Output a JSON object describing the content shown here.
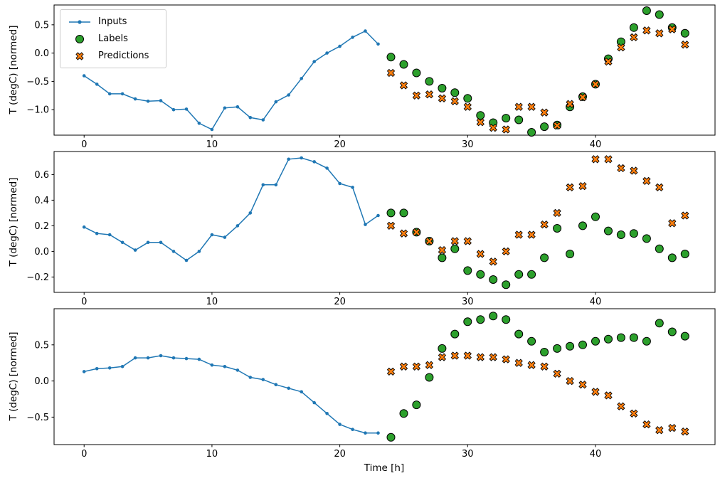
{
  "figure": {
    "background": "#ffffff",
    "xlabel": "Time [h]",
    "ylabel": "T (degC) [normed]"
  },
  "legend": {
    "position": "upper left",
    "items": [
      {
        "label": "Inputs",
        "marker": "line-dot",
        "color": "#1f77b4",
        "edge": "#000000"
      },
      {
        "label": "Labels",
        "marker": "circle",
        "color": "#2ca02c",
        "edge": "#000000"
      },
      {
        "label": "Predictions",
        "marker": "x",
        "color": "#ff7f0e",
        "edge": "#000000"
      }
    ]
  },
  "chart_data": [
    {
      "type": "line",
      "title": "",
      "xlabel": "",
      "ylabel": "T (degC) [normed]",
      "xlim": [
        -2.35,
        49.35
      ],
      "ylim": [
        -1.45,
        0.85
      ],
      "xticks": [
        0,
        10,
        20,
        30,
        40
      ],
      "yticks": [
        0.5,
        0.0,
        -0.5,
        -1.0
      ],
      "grid": false,
      "series": [
        {
          "name": "Inputs",
          "type": "line",
          "marker": "dot",
          "color": "#1f77b4",
          "x": [
            0,
            1,
            2,
            3,
            4,
            5,
            6,
            7,
            8,
            9,
            10,
            11,
            12,
            13,
            14,
            15,
            16,
            17,
            18,
            19,
            20,
            21,
            22,
            23
          ],
          "y": [
            -0.4,
            -0.55,
            -0.72,
            -0.72,
            -0.81,
            -0.85,
            -0.84,
            -1.0,
            -0.99,
            -1.24,
            -1.35,
            -0.97,
            -0.95,
            -1.14,
            -1.18,
            -0.86,
            -0.74,
            -0.45,
            -0.15,
            0.0,
            0.12,
            0.28,
            0.39,
            0.16
          ]
        },
        {
          "name": "Labels",
          "type": "scatter",
          "marker": "circle",
          "color": "#2ca02c",
          "edge": "#000000",
          "x": [
            24,
            25,
            26,
            27,
            28,
            29,
            30,
            31,
            32,
            33,
            34,
            35,
            36,
            37,
            38,
            39,
            40,
            41,
            42,
            43,
            44,
            45,
            46,
            47
          ],
          "y": [
            -0.07,
            -0.2,
            -0.35,
            -0.5,
            -0.62,
            -0.7,
            -0.8,
            -1.1,
            -1.23,
            -1.15,
            -1.18,
            -1.4,
            -1.3,
            -1.27,
            -0.95,
            -0.77,
            -0.55,
            -0.1,
            0.2,
            0.45,
            0.75,
            0.68,
            0.45,
            0.35
          ]
        },
        {
          "name": "Predictions",
          "type": "scatter",
          "marker": "x",
          "color": "#ff7f0e",
          "edge": "#000000",
          "x": [
            24,
            25,
            26,
            27,
            28,
            29,
            30,
            31,
            32,
            33,
            34,
            35,
            36,
            37,
            38,
            39,
            40,
            41,
            42,
            43,
            44,
            45,
            46,
            47
          ],
          "y": [
            -0.35,
            -0.57,
            -0.75,
            -0.73,
            -0.8,
            -0.85,
            -0.95,
            -1.22,
            -1.32,
            -1.35,
            -0.95,
            -0.95,
            -1.05,
            -1.28,
            -0.9,
            -0.78,
            -0.55,
            -0.15,
            0.1,
            0.28,
            0.4,
            0.35,
            0.42,
            0.15
          ]
        }
      ]
    },
    {
      "type": "line",
      "title": "",
      "xlabel": "",
      "ylabel": "T (degC) [normed]",
      "xlim": [
        -2.35,
        49.35
      ],
      "ylim": [
        -0.32,
        0.78
      ],
      "xticks": [
        0,
        10,
        20,
        30,
        40
      ],
      "yticks": [
        0.6,
        0.4,
        0.2,
        0.0,
        -0.2
      ],
      "grid": false,
      "series": [
        {
          "name": "Inputs",
          "type": "line",
          "marker": "dot",
          "color": "#1f77b4",
          "x": [
            0,
            1,
            2,
            3,
            4,
            5,
            6,
            7,
            8,
            9,
            10,
            11,
            12,
            13,
            14,
            15,
            16,
            17,
            18,
            19,
            20,
            21,
            22,
            23
          ],
          "y": [
            0.19,
            0.14,
            0.13,
            0.07,
            0.01,
            0.07,
            0.07,
            0.0,
            -0.07,
            0.0,
            0.13,
            0.11,
            0.2,
            0.3,
            0.52,
            0.52,
            0.72,
            0.73,
            0.7,
            0.65,
            0.53,
            0.5,
            0.21,
            0.28
          ]
        },
        {
          "name": "Labels",
          "type": "scatter",
          "marker": "circle",
          "color": "#2ca02c",
          "edge": "#000000",
          "x": [
            24,
            25,
            26,
            27,
            28,
            29,
            30,
            31,
            32,
            33,
            34,
            35,
            36,
            37,
            38,
            39,
            40,
            41,
            42,
            43,
            44,
            45,
            46,
            47
          ],
          "y": [
            0.3,
            0.3,
            0.15,
            0.08,
            -0.05,
            0.02,
            -0.15,
            -0.18,
            -0.22,
            -0.26,
            -0.18,
            -0.18,
            -0.05,
            0.18,
            -0.02,
            0.2,
            0.27,
            0.16,
            0.13,
            0.14,
            0.1,
            0.02,
            -0.05,
            -0.02
          ]
        },
        {
          "name": "Predictions",
          "type": "scatter",
          "marker": "x",
          "color": "#ff7f0e",
          "edge": "#000000",
          "x": [
            24,
            25,
            26,
            27,
            28,
            29,
            30,
            31,
            32,
            33,
            34,
            35,
            36,
            37,
            38,
            39,
            40,
            41,
            42,
            43,
            44,
            45,
            46,
            47
          ],
          "y": [
            0.2,
            0.14,
            0.15,
            0.08,
            0.01,
            0.08,
            0.08,
            -0.02,
            -0.08,
            0.0,
            0.13,
            0.13,
            0.21,
            0.3,
            0.5,
            0.51,
            0.72,
            0.72,
            0.65,
            0.63,
            0.55,
            0.5,
            0.22,
            0.28
          ]
        }
      ]
    },
    {
      "type": "line",
      "title": "",
      "xlabel": "Time [h]",
      "ylabel": "T (degC) [normed]",
      "xlim": [
        -2.35,
        49.35
      ],
      "ylim": [
        -0.88,
        1.0
      ],
      "xticks": [
        0,
        10,
        20,
        30,
        40
      ],
      "yticks": [
        0.5,
        0.0,
        -0.5
      ],
      "grid": false,
      "series": [
        {
          "name": "Inputs",
          "type": "line",
          "marker": "dot",
          "color": "#1f77b4",
          "x": [
            0,
            1,
            2,
            3,
            4,
            5,
            6,
            7,
            8,
            9,
            10,
            11,
            12,
            13,
            14,
            15,
            16,
            17,
            18,
            19,
            20,
            21,
            22,
            23
          ],
          "y": [
            0.13,
            0.17,
            0.18,
            0.2,
            0.32,
            0.32,
            0.35,
            0.32,
            0.31,
            0.3,
            0.22,
            0.2,
            0.15,
            0.05,
            0.02,
            -0.05,
            -0.1,
            -0.15,
            -0.3,
            -0.45,
            -0.6,
            -0.67,
            -0.72,
            -0.72
          ]
        },
        {
          "name": "Labels",
          "type": "scatter",
          "marker": "circle",
          "color": "#2ca02c",
          "edge": "#000000",
          "x": [
            24,
            25,
            26,
            27,
            28,
            29,
            30,
            31,
            32,
            33,
            34,
            35,
            36,
            37,
            38,
            39,
            40,
            41,
            42,
            43,
            44,
            45,
            46,
            47
          ],
          "y": [
            -0.78,
            -0.45,
            -0.33,
            0.05,
            0.45,
            0.65,
            0.82,
            0.85,
            0.9,
            0.85,
            0.65,
            0.55,
            0.4,
            0.45,
            0.48,
            0.5,
            0.55,
            0.58,
            0.6,
            0.6,
            0.55,
            0.8,
            0.68,
            0.62
          ]
        },
        {
          "name": "Predictions",
          "type": "scatter",
          "marker": "x",
          "color": "#ff7f0e",
          "edge": "#000000",
          "x": [
            24,
            25,
            26,
            27,
            28,
            29,
            30,
            31,
            32,
            33,
            34,
            35,
            36,
            37,
            38,
            39,
            40,
            41,
            42,
            43,
            44,
            45,
            46,
            47
          ],
          "y": [
            0.13,
            0.2,
            0.2,
            0.22,
            0.33,
            0.35,
            0.35,
            0.33,
            0.33,
            0.3,
            0.25,
            0.22,
            0.2,
            0.1,
            0.0,
            -0.05,
            -0.15,
            -0.2,
            -0.35,
            -0.45,
            -0.6,
            -0.68,
            -0.65,
            -0.7
          ]
        }
      ]
    }
  ]
}
